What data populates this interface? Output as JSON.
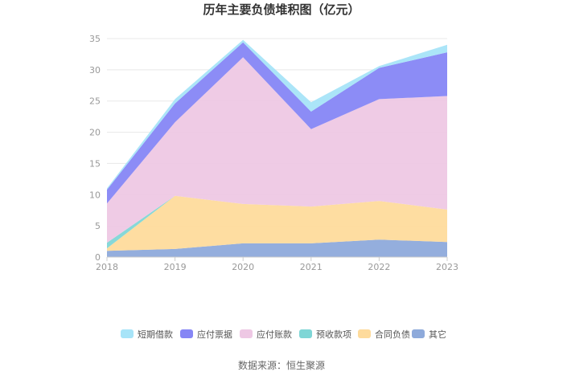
{
  "chart_data": {
    "type": "area",
    "stacked": true,
    "title": "历年主要负债堆积图（亿元）",
    "x": [
      "2018",
      "2019",
      "2020",
      "2021",
      "2022",
      "2023"
    ],
    "ylim": [
      0,
      35
    ],
    "yticks": [
      0,
      5,
      10,
      15,
      20,
      25,
      30,
      35
    ],
    "grid": true,
    "legend_position": "bottom",
    "series": [
      {
        "name": "其它",
        "color": "#8eaadb",
        "values": [
          1.0,
          1.3,
          2.2,
          2.2,
          2.8,
          2.4
        ]
      },
      {
        "name": "合同负债",
        "color": "#fedb9c",
        "values": [
          0.4,
          8.5,
          6.3,
          5.9,
          6.2,
          5.2
        ]
      },
      {
        "name": "预收款项",
        "color": "#7fd6d6",
        "values": [
          0.9,
          0.0,
          0.0,
          0.0,
          0.0,
          0.0
        ]
      },
      {
        "name": "应付账款",
        "color": "#eec8e4",
        "values": [
          6.3,
          11.8,
          23.5,
          12.4,
          16.3,
          18.2
        ]
      },
      {
        "name": "应付票据",
        "color": "#8686f5",
        "values": [
          2.2,
          3.0,
          2.4,
          2.8,
          5.0,
          7.0
        ]
      },
      {
        "name": "短期借款",
        "color": "#a7e4f8",
        "values": [
          0.2,
          0.7,
          0.4,
          1.5,
          0.3,
          1.2
        ]
      }
    ],
    "legend_order": [
      "短期借款",
      "应付票据",
      "应付账款",
      "预收款项",
      "合同负债",
      "其它"
    ],
    "source": "数据来源：恒生聚源"
  }
}
